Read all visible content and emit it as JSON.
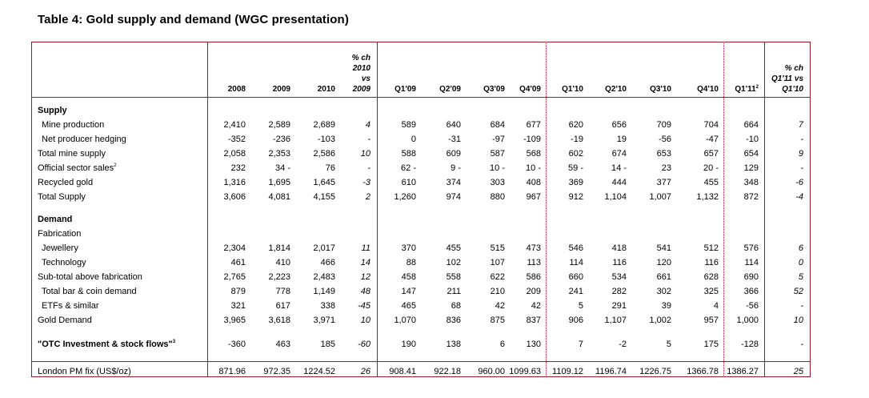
{
  "title": "Table 4: Gold supply and demand (WGC presentation)",
  "columns": [
    {
      "lines": [
        "2008"
      ]
    },
    {
      "lines": [
        "2009"
      ]
    },
    {
      "lines": [
        "2010"
      ]
    },
    {
      "lines": [
        "% ch",
        "2010",
        "vs",
        "2009"
      ],
      "italic": true
    },
    {
      "lines": [
        "Q1'09"
      ]
    },
    {
      "lines": [
        "Q2'09"
      ]
    },
    {
      "lines": [
        "Q3'09"
      ]
    },
    {
      "lines": [
        "Q4'09"
      ]
    },
    {
      "lines": [
        "Q1'10"
      ]
    },
    {
      "lines": [
        "Q2'10"
      ]
    },
    {
      "lines": [
        "Q3'10"
      ]
    },
    {
      "lines": [
        "Q4'10"
      ]
    },
    {
      "lines": [
        "Q1'11"
      ],
      "sup": "2"
    },
    {
      "lines": [
        "% ch",
        "Q1'11 vs",
        "Q1'10"
      ],
      "italic": true
    }
  ],
  "rows": [
    {
      "label": "Supply",
      "bold": true
    },
    {
      "label": "Mine production",
      "indent": true,
      "values": [
        "2,410",
        "2,589",
        "2,689",
        "4",
        "589",
        "640",
        "684",
        "677",
        "620",
        "656",
        "709",
        "704",
        "664",
        "7"
      ]
    },
    {
      "label": "Net producer hedging",
      "indent": true,
      "values": [
        "-352",
        "-236",
        "-103",
        "-",
        "0",
        "-31",
        "-97",
        "-109",
        "-19",
        "19",
        "-56",
        "-47",
        "-10",
        "-"
      ]
    },
    {
      "label": "Total mine supply",
      "values": [
        "2,058",
        "2,353",
        "2,586",
        "10",
        "588",
        "609",
        "587",
        "568",
        "602",
        "674",
        "653",
        "657",
        "654",
        "9"
      ]
    },
    {
      "label": "Official sector sales",
      "sup": "2",
      "values": [
        "232",
        "34 -",
        "76",
        "-",
        "62 -",
        "9 -",
        "10 -",
        "10 -",
        "59 -",
        "14 -",
        "23",
        "20 -",
        "129",
        "-"
      ]
    },
    {
      "label": "Recycled gold",
      "values": [
        "1,316",
        "1,695",
        "1,645",
        "-3",
        "610",
        "374",
        "303",
        "408",
        "369",
        "444",
        "377",
        "455",
        "348",
        "-6"
      ]
    },
    {
      "label": "Total Supply",
      "values": [
        "3,606",
        "4,081",
        "4,155",
        "2",
        "1,260",
        "974",
        "880",
        "967",
        "912",
        "1,104",
        "1,007",
        "1,132",
        "872",
        "-4"
      ]
    },
    {
      "label": "Demand",
      "bold": true
    },
    {
      "label": "Fabrication"
    },
    {
      "label": "Jewellery",
      "indent": true,
      "values": [
        "2,304",
        "1,814",
        "2,017",
        "11",
        "370",
        "455",
        "515",
        "473",
        "546",
        "418",
        "541",
        "512",
        "576",
        "6"
      ]
    },
    {
      "label": "Technology",
      "indent": true,
      "values": [
        "461",
        "410",
        "466",
        "14",
        "88",
        "102",
        "107",
        "113",
        "114",
        "116",
        "120",
        "116",
        "114",
        "0"
      ]
    },
    {
      "label": "Sub-total above fabrication",
      "values": [
        "2,765",
        "2,223",
        "2,483",
        "12",
        "458",
        "558",
        "622",
        "586",
        "660",
        "534",
        "661",
        "628",
        "690",
        "5"
      ]
    },
    {
      "label": "Total bar & coin demand",
      "indent": true,
      "values": [
        "879",
        "778",
        "1,149",
        "48",
        "147",
        "211",
        "210",
        "209",
        "241",
        "282",
        "302",
        "325",
        "366",
        "52"
      ]
    },
    {
      "label": "ETFs & similar",
      "indent": true,
      "values": [
        "321",
        "617",
        "338",
        "-45",
        "465",
        "68",
        "42",
        "42",
        "5",
        "291",
        "39",
        "4",
        "-56",
        "-"
      ]
    },
    {
      "label": "Gold Demand",
      "values": [
        "3,965",
        "3,618",
        "3,971",
        "10",
        "1,070",
        "836",
        "875",
        "837",
        "906",
        "1,107",
        "1,002",
        "957",
        "1,000",
        "10"
      ]
    },
    {
      "label": "\"OTC Investment & stock flows\"",
      "sup": "3",
      "bold": true,
      "values": [
        "-360",
        "463",
        "185",
        "-60",
        "190",
        "138",
        "6",
        "130",
        "7",
        "-2",
        "5",
        "175",
        "-128",
        "-"
      ]
    },
    {
      "label": "London PM fix (US$/oz)",
      "values": [
        "871.96",
        "972.35",
        "1224.52",
        "26",
        "908.41",
        "922.18",
        "960.00",
        "1099.63",
        "1109.12",
        "1196.74",
        "1226.75",
        "1366.78",
        "1386.27",
        "25"
      ]
    }
  ]
}
